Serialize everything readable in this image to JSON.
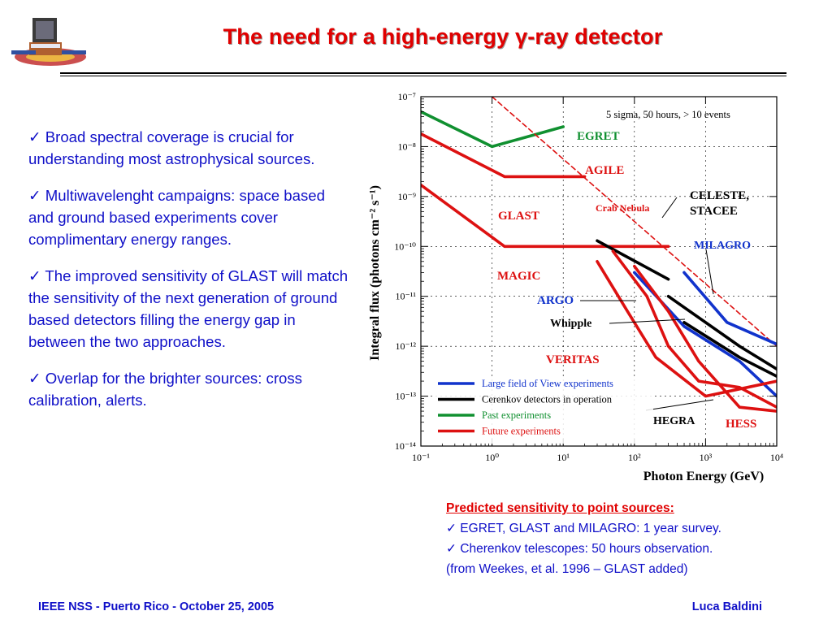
{
  "title": "The need for a high-energy γ-ray detector",
  "bullets": [
    "✓ Broad spectral coverage is crucial for understanding most astrophysical sources.",
    "✓ Multiwavelenght campaigns: space based and ground based experiments cover complimentary energy ranges.",
    "✓ The improved sensitivity of GLAST will match the sensitivity of the next generation of ground based detectors filling the energy gap in between the two approaches.",
    "✓ Overlap for the brighter sources: cross calibration, alerts."
  ],
  "caption": {
    "heading": "Predicted sensitivity to point sources:",
    "lines": [
      "✓ EGRET, GLAST and MILAGRO: 1 year survey.",
      "✓ Cherenkov telescopes: 50 hours observation.",
      "(from Weekes, et al. 1996 – GLAST added)"
    ]
  },
  "footer": {
    "left": "IEEE NSS - Puerto Rico - October 25, 2005",
    "right": "Luca Baldini"
  },
  "colors": {
    "title": "#e00000",
    "text": "#1010c8",
    "green": "#109030",
    "red": "#dd1111",
    "blue": "#1133cc",
    "black": "#000000"
  },
  "chart_data": {
    "type": "line",
    "xlabel": "Photon Energy (GeV)",
    "ylabel": "Integral flux (photons cm⁻² s⁻¹)",
    "x_scale": "log",
    "y_scale": "log",
    "xlim": [
      0.1,
      10000
    ],
    "ylim": [
      1e-14,
      1e-07
    ],
    "x_ticks": [
      "10⁻¹",
      "10⁰",
      "10¹",
      "10²",
      "10³",
      "10⁴"
    ],
    "y_ticks": [
      "10⁻¹⁴",
      "10⁻¹³",
      "10⁻¹²",
      "10⁻¹¹",
      "10⁻¹⁰",
      "10⁻⁹",
      "10⁻⁸",
      "10⁻⁷"
    ],
    "annotation": "5 sigma, 50 hours,  > 10 events",
    "legend_position": "bottom-left",
    "legend": [
      {
        "label": "Large field of View experiments",
        "color": "#1133cc"
      },
      {
        "label": "Cerenkov detectors in operation",
        "color": "#000000"
      },
      {
        "label": "Past experiments",
        "color": "#109030"
      },
      {
        "label": "Future experiments",
        "color": "#dd1111"
      }
    ],
    "series": [
      {
        "name": "EGRET",
        "color": "#109030",
        "points": [
          [
            0.1,
            5e-08
          ],
          [
            1.0,
            1e-08
          ],
          [
            10,
            2.5e-08
          ]
        ]
      },
      {
        "name": "AGILE",
        "color": "#dd1111",
        "points": [
          [
            0.1,
            1.8e-08
          ],
          [
            1.5,
            2.5e-09
          ],
          [
            20,
            2.5e-09
          ]
        ]
      },
      {
        "name": "GLAST",
        "color": "#dd1111",
        "points": [
          [
            0.1,
            1.7e-09
          ],
          [
            1.5,
            1e-10
          ],
          [
            300,
            1e-10
          ]
        ]
      },
      {
        "name": "Crab Nebula",
        "color": "#dd1111",
        "dashed": true,
        "points": [
          [
            1,
            1e-07
          ],
          [
            10000,
            1e-12
          ]
        ]
      },
      {
        "name": "CELESTE, STACEE",
        "color": "#000000",
        "points": [
          [
            30,
            1.3e-10
          ],
          [
            300,
            2.2e-11
          ]
        ]
      },
      {
        "name": "MILAGRO",
        "color": "#1133cc",
        "points": [
          [
            500,
            3e-11
          ],
          [
            2000,
            3e-12
          ],
          [
            10000,
            1.1e-12
          ]
        ]
      },
      {
        "name": "MAGIC",
        "color": "#dd1111",
        "points": [
          [
            50,
            8e-11
          ],
          [
            150,
            1e-11
          ],
          [
            300,
            1e-12
          ],
          [
            800,
            2e-13
          ],
          [
            3000,
            1.5e-13
          ],
          [
            10000,
            6e-14
          ]
        ]
      },
      {
        "name": "ARGO",
        "color": "#1133cc",
        "points": [
          [
            100,
            3e-11
          ],
          [
            500,
            2.5e-12
          ],
          [
            3000,
            5e-13
          ],
          [
            10000,
            1e-13
          ]
        ]
      },
      {
        "name": "Whipple",
        "color": "#000000",
        "points": [
          [
            300,
            1e-11
          ],
          [
            3000,
            1e-12
          ],
          [
            10000,
            3.5e-13
          ]
        ]
      },
      {
        "name": "HEGRA",
        "color": "#000000",
        "points": [
          [
            500,
            3e-12
          ],
          [
            3000,
            6e-13
          ],
          [
            10000,
            2.5e-13
          ]
        ]
      },
      {
        "name": "VERITAS",
        "color": "#dd1111",
        "points": [
          [
            30,
            5e-11
          ],
          [
            80,
            5e-12
          ],
          [
            200,
            6e-13
          ],
          [
            1000,
            1e-13
          ],
          [
            10000,
            2e-13
          ]
        ]
      },
      {
        "name": "HESS",
        "color": "#dd1111",
        "points": [
          [
            100,
            4e-11
          ],
          [
            300,
            5e-12
          ],
          [
            800,
            5e-13
          ],
          [
            3000,
            6e-14
          ],
          [
            10000,
            5e-14
          ]
        ]
      }
    ],
    "labels": [
      {
        "text": "EGRET",
        "color": "#109030"
      },
      {
        "text": "AGILE",
        "color": "#dd1111"
      },
      {
        "text": "GLAST",
        "color": "#dd1111"
      },
      {
        "text": "Crab Nebula",
        "color": "#dd1111"
      },
      {
        "text": "CELESTE,",
        "color": "#000000"
      },
      {
        "text": "STACEE",
        "color": "#000000"
      },
      {
        "text": "MILAGRO",
        "color": "#1133cc"
      },
      {
        "text": "MAGIC",
        "color": "#dd1111"
      },
      {
        "text": "ARGO",
        "color": "#1133cc"
      },
      {
        "text": "Whipple",
        "color": "#000000"
      },
      {
        "text": "VERITAS",
        "color": "#dd1111"
      },
      {
        "text": "HEGRA",
        "color": "#000000"
      },
      {
        "text": "HESS",
        "color": "#dd1111"
      }
    ]
  }
}
